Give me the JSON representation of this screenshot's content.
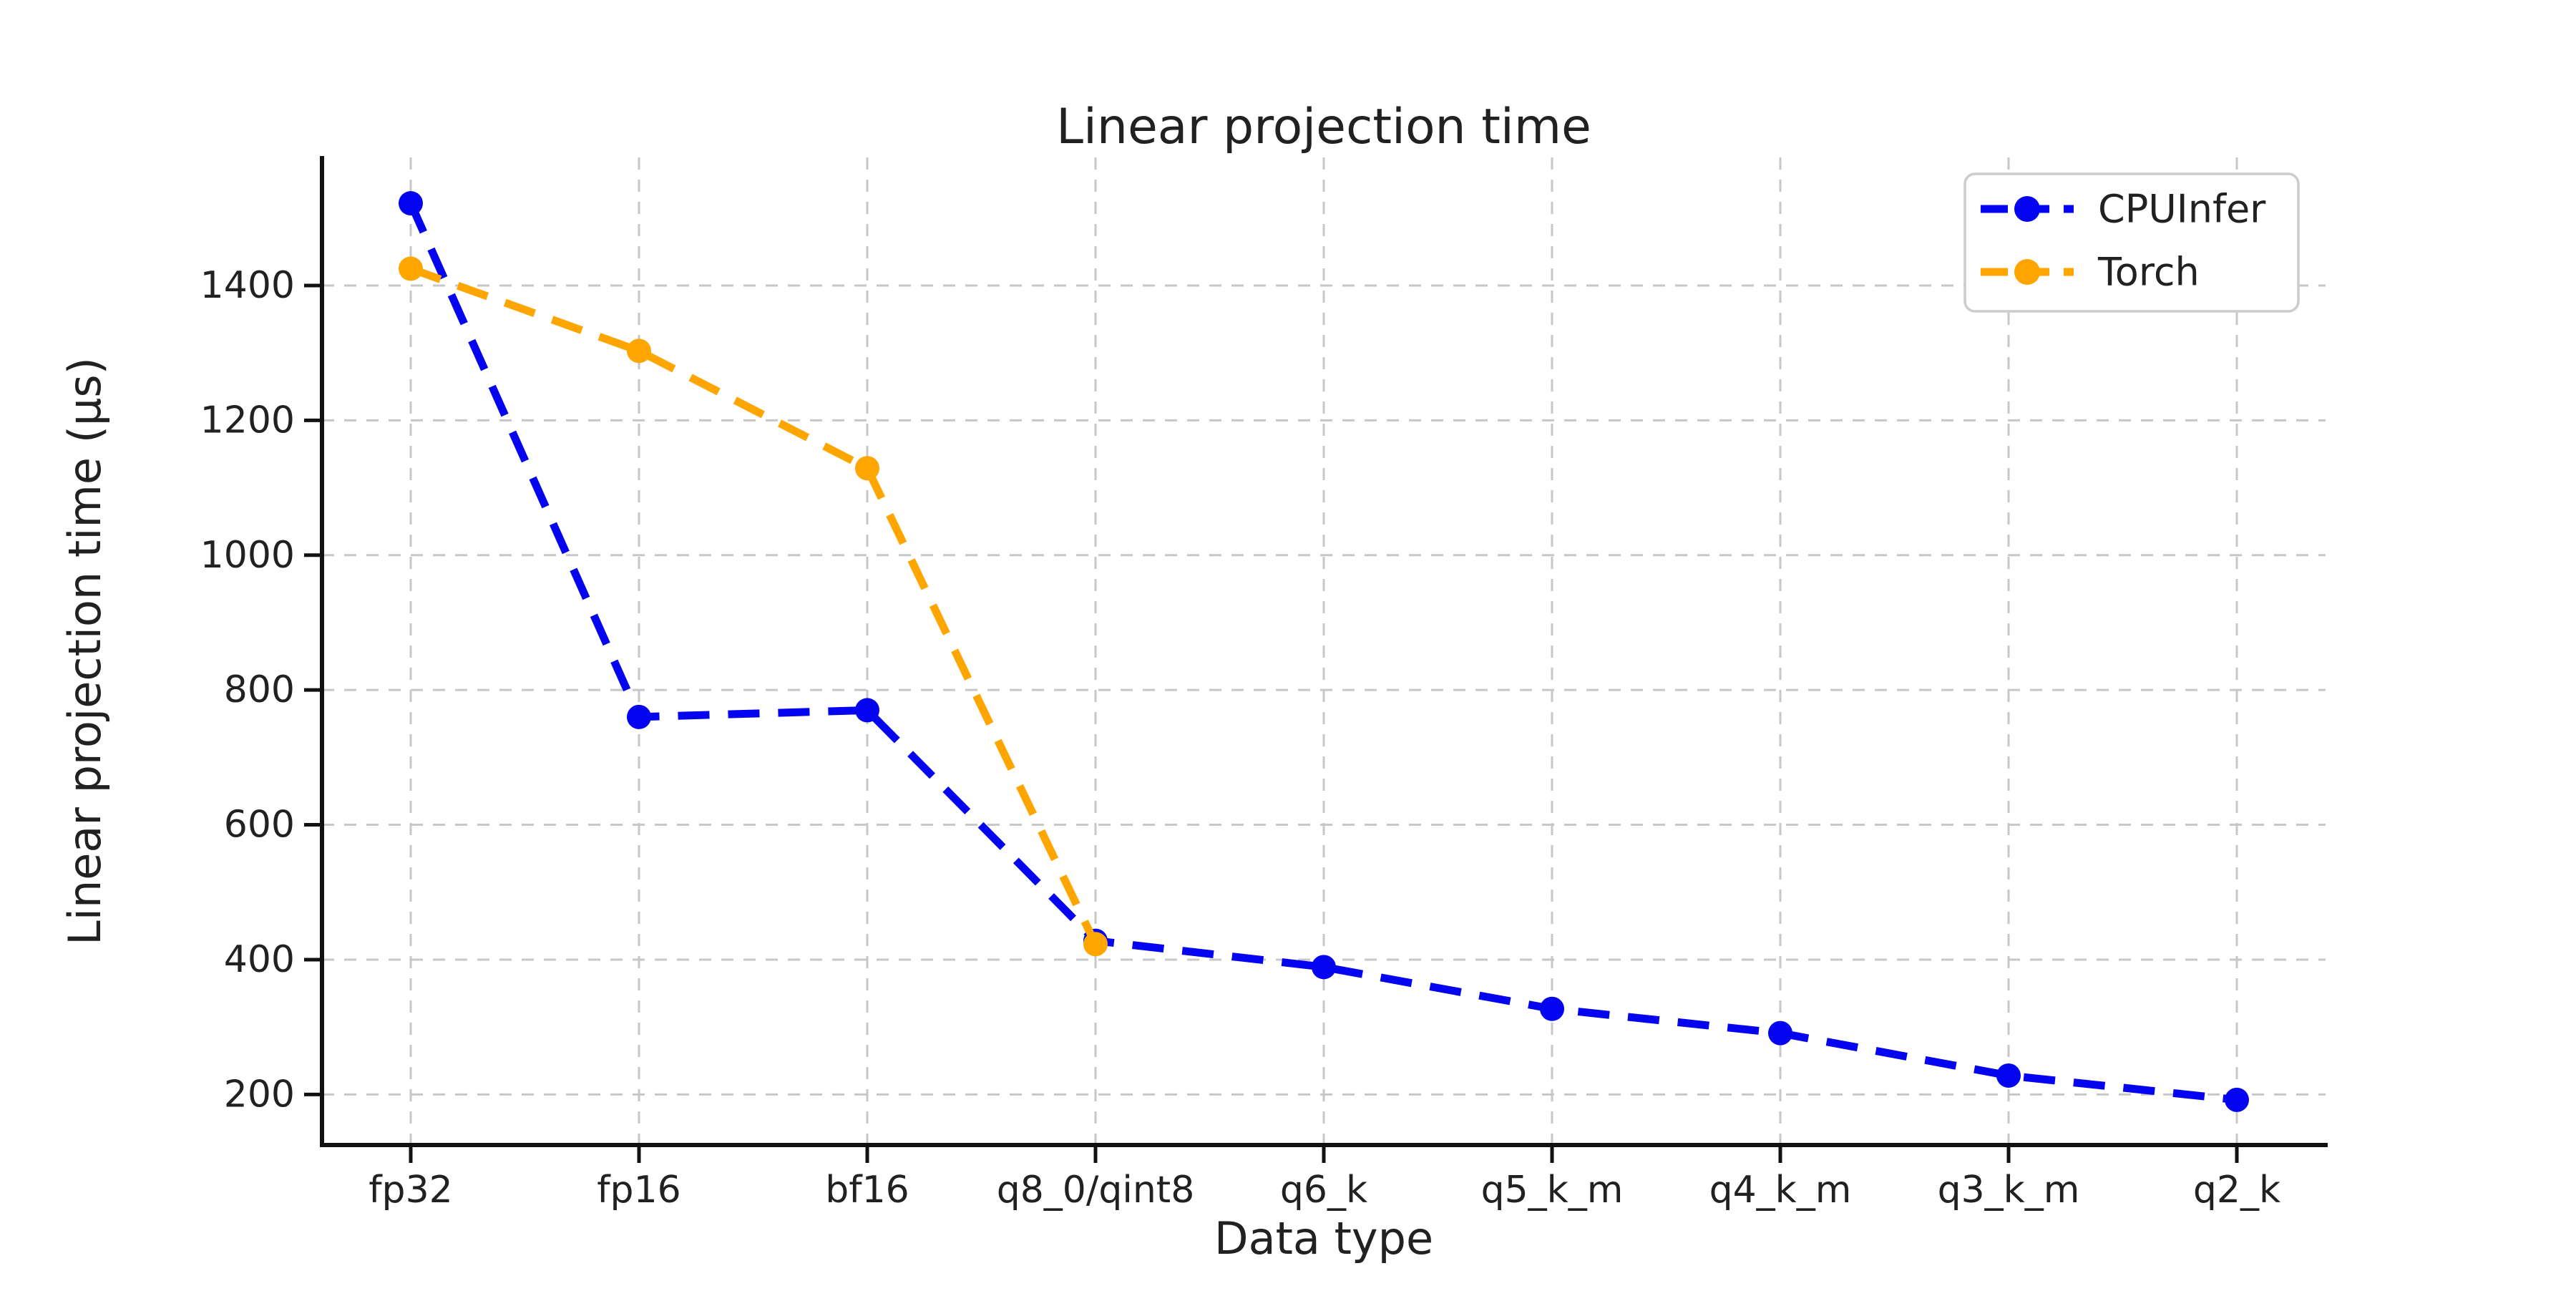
{
  "chart_data": {
    "type": "line",
    "title": "Linear projection time",
    "xlabel": "Data type",
    "ylabel": "Linear projection time (μs)",
    "categories": [
      "fp32",
      "fp16",
      "bf16",
      "q8_0/qint8",
      "q6_k",
      "q5_k_m",
      "q4_k_m",
      "q3_k_m",
      "q2_k"
    ],
    "series": [
      {
        "name": "CPUInfer",
        "color": "#0404f0",
        "line_style": "dashed",
        "marker": "circle",
        "values": [
          1522,
          760,
          770,
          428,
          389,
          327,
          291,
          228,
          192
        ]
      },
      {
        "name": "Torch",
        "color": "#ffa500",
        "line_style": "dashed",
        "marker": "circle",
        "values": [
          1425,
          1303,
          1129,
          423
        ]
      }
    ],
    "yticks": [
      200,
      400,
      600,
      800,
      1000,
      1200,
      1400
    ],
    "ylim": [
      125,
      1590
    ],
    "grid": true,
    "grid_color": "#c7c7c7",
    "axis_color": "#111111",
    "text_color": "#212121",
    "legend": {
      "position": "upper right",
      "entries": [
        "CPUInfer",
        "Torch"
      ]
    }
  }
}
